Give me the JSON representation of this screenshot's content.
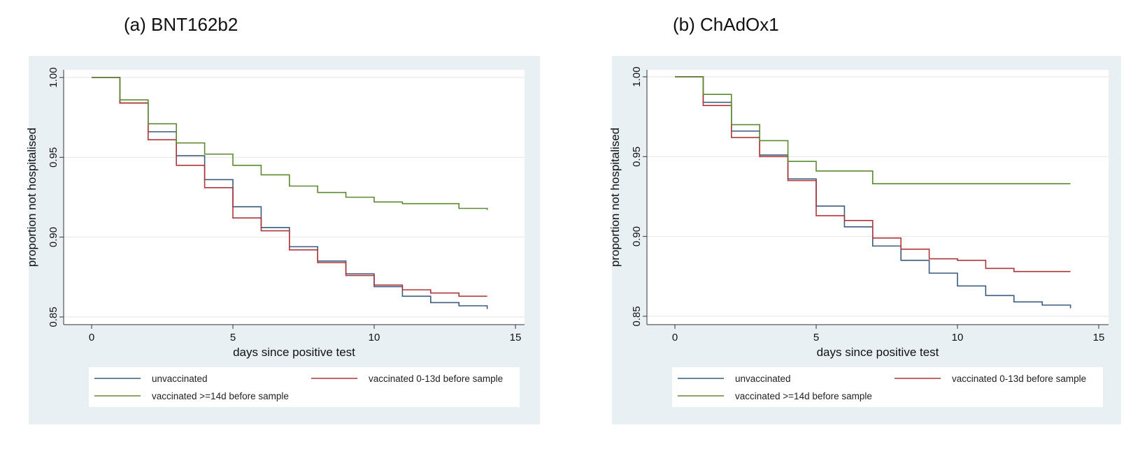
{
  "chart_data": [
    {
      "type": "line",
      "title": "(a) BNT162b2",
      "xlabel": "days since positive test",
      "ylabel": "proportion not hospitalised",
      "xlim": [
        0,
        15
      ],
      "ylim": [
        0.85,
        1.0
      ],
      "x_ticks": [
        "0",
        "5",
        "10",
        "15"
      ],
      "y_ticks": [
        "0.85",
        "0.90",
        "0.95",
        "1.00"
      ],
      "grid": true,
      "legend_position": "bottom",
      "step": true,
      "x": [
        0,
        1,
        2,
        3,
        4,
        5,
        6,
        7,
        8,
        9,
        10,
        11,
        12,
        13,
        14
      ],
      "series": [
        {
          "name": "unvaccinated",
          "color": "#3b5b7f",
          "values": [
            1.0,
            0.984,
            0.966,
            0.951,
            0.936,
            0.919,
            0.906,
            0.894,
            0.885,
            0.877,
            0.869,
            0.863,
            0.859,
            0.857,
            0.855
          ]
        },
        {
          "name": "vaccinated 0-13d before sample",
          "color": "#b0363a",
          "values": [
            1.0,
            0.984,
            0.961,
            0.945,
            0.931,
            0.912,
            0.904,
            0.892,
            0.884,
            0.876,
            0.87,
            0.867,
            0.865,
            0.863,
            0.863
          ]
        },
        {
          "name": "vaccinated >=14d before sample",
          "color": "#5c8a2e",
          "values": [
            1.0,
            0.986,
            0.971,
            0.959,
            0.952,
            0.945,
            0.939,
            0.932,
            0.928,
            0.925,
            0.922,
            0.921,
            0.921,
            0.918,
            0.917
          ]
        }
      ]
    },
    {
      "type": "line",
      "title": "(b) ChAdOx1",
      "xlabel": "days since positive test",
      "ylabel": "proportion not hospitalised",
      "xlim": [
        0,
        15
      ],
      "ylim": [
        0.85,
        1.0
      ],
      "x_ticks": [
        "0",
        "5",
        "10",
        "15"
      ],
      "y_ticks": [
        "0.85",
        "0.90",
        "0.95",
        "1.00"
      ],
      "grid": true,
      "legend_position": "bottom",
      "step": true,
      "x": [
        0,
        1,
        2,
        3,
        4,
        5,
        6,
        7,
        8,
        9,
        10,
        11,
        12,
        13,
        14
      ],
      "series": [
        {
          "name": "unvaccinated",
          "color": "#3b5b7f",
          "values": [
            1.0,
            0.984,
            0.966,
            0.951,
            0.936,
            0.919,
            0.906,
            0.894,
            0.885,
            0.877,
            0.869,
            0.863,
            0.859,
            0.857,
            0.855
          ]
        },
        {
          "name": "vaccinated 0-13d before sample",
          "color": "#b0363a",
          "values": [
            1.0,
            0.982,
            0.962,
            0.95,
            0.935,
            0.913,
            0.91,
            0.899,
            0.892,
            0.886,
            0.885,
            0.88,
            0.878,
            0.878,
            0.878
          ]
        },
        {
          "name": "vaccinated >=14d before sample",
          "color": "#5c8a2e",
          "values": [
            1.0,
            0.989,
            0.97,
            0.96,
            0.947,
            0.941,
            0.941,
            0.933,
            0.933,
            0.933,
            0.933,
            0.933,
            0.933,
            0.933,
            0.933
          ]
        }
      ]
    }
  ]
}
